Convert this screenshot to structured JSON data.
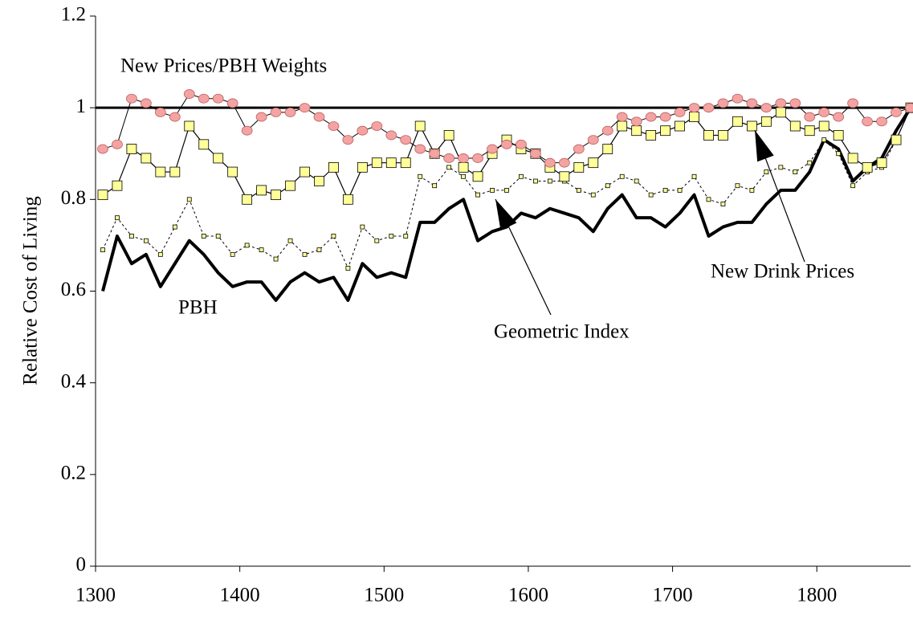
{
  "chart_data": {
    "type": "line",
    "y_label": "Relative Cost of Living",
    "x": [
      1305,
      1315,
      1325,
      1335,
      1345,
      1355,
      1365,
      1375,
      1385,
      1395,
      1405,
      1415,
      1425,
      1435,
      1445,
      1455,
      1465,
      1475,
      1485,
      1495,
      1505,
      1515,
      1525,
      1535,
      1545,
      1555,
      1565,
      1575,
      1585,
      1595,
      1605,
      1615,
      1625,
      1635,
      1645,
      1655,
      1665,
      1675,
      1685,
      1695,
      1705,
      1715,
      1725,
      1735,
      1745,
      1755,
      1765,
      1775,
      1785,
      1795,
      1805,
      1815,
      1825,
      1835,
      1845,
      1855,
      1865
    ],
    "series": [
      {
        "name": "New Prices/PBH Weights",
        "color": "#f4a3a3",
        "marker": "circle",
        "values": [
          0.91,
          0.92,
          1.02,
          1.01,
          0.99,
          0.98,
          1.03,
          1.02,
          1.02,
          1.01,
          0.95,
          0.98,
          0.99,
          0.99,
          1.0,
          0.98,
          0.96,
          0.93,
          0.95,
          0.96,
          0.94,
          0.93,
          0.91,
          0.9,
          0.89,
          0.89,
          0.89,
          0.91,
          0.92,
          0.92,
          0.9,
          0.88,
          0.88,
          0.91,
          0.93,
          0.95,
          0.98,
          0.97,
          0.98,
          0.98,
          0.99,
          1.0,
          1.0,
          1.01,
          1.02,
          1.01,
          1.0,
          1.01,
          1.01,
          0.98,
          0.99,
          0.98,
          1.01,
          0.97,
          0.97,
          0.99,
          1.0
        ]
      },
      {
        "name": "New Drink Prices",
        "color": "#ffff99",
        "marker": "square",
        "values": [
          0.81,
          0.83,
          0.91,
          0.89,
          0.86,
          0.86,
          0.96,
          0.92,
          0.89,
          0.86,
          0.8,
          0.82,
          0.81,
          0.83,
          0.86,
          0.84,
          0.87,
          0.8,
          0.87,
          0.88,
          0.88,
          0.88,
          0.96,
          0.9,
          0.94,
          0.87,
          0.85,
          0.9,
          0.93,
          0.91,
          0.9,
          0.87,
          0.85,
          0.87,
          0.88,
          0.91,
          0.96,
          0.95,
          0.94,
          0.95,
          0.96,
          0.98,
          0.94,
          0.94,
          0.97,
          0.96,
          0.97,
          0.99,
          0.96,
          0.95,
          0.96,
          0.94,
          0.89,
          0.87,
          0.88,
          0.93,
          1.0
        ]
      },
      {
        "name": "Geometric Index",
        "color": "#ffff99",
        "marker": "small-square",
        "values": [
          0.69,
          0.76,
          0.72,
          0.71,
          0.68,
          0.74,
          0.8,
          0.72,
          0.72,
          0.68,
          0.7,
          0.69,
          0.67,
          0.71,
          0.68,
          0.69,
          0.72,
          0.65,
          0.74,
          0.71,
          0.72,
          0.72,
          0.85,
          0.83,
          0.87,
          0.85,
          0.81,
          0.82,
          0.82,
          0.85,
          0.84,
          0.84,
          0.84,
          0.82,
          0.81,
          0.83,
          0.85,
          0.84,
          0.81,
          0.82,
          0.82,
          0.85,
          0.8,
          0.79,
          0.83,
          0.82,
          0.86,
          0.87,
          0.86,
          0.88,
          0.93,
          0.9,
          0.83,
          0.86,
          0.87,
          0.93,
          1.0
        ]
      },
      {
        "name": "PBH",
        "color": "#000000",
        "marker": "none",
        "values": [
          0.6,
          0.72,
          0.66,
          0.68,
          0.61,
          0.66,
          0.71,
          0.68,
          0.64,
          0.61,
          0.62,
          0.62,
          0.58,
          0.62,
          0.64,
          0.62,
          0.63,
          0.58,
          0.66,
          0.63,
          0.64,
          0.63,
          0.75,
          0.75,
          0.78,
          0.8,
          0.71,
          0.73,
          0.74,
          0.77,
          0.76,
          0.78,
          0.77,
          0.76,
          0.73,
          0.78,
          0.81,
          0.76,
          0.76,
          0.74,
          0.77,
          0.81,
          0.72,
          0.74,
          0.75,
          0.75,
          0.79,
          0.82,
          0.82,
          0.86,
          0.93,
          0.91,
          0.84,
          0.87,
          0.89,
          0.95,
          1.0
        ]
      }
    ],
    "reference_line": 1,
    "xlim": [
      1300,
      1865
    ],
    "xticks": [
      1300,
      1400,
      1500,
      1600,
      1700,
      1800
    ],
    "ylim": [
      0,
      1.2
    ],
    "yticks": [
      0,
      0.2,
      0.4,
      0.6,
      0.8,
      1,
      1.2
    ]
  }
}
